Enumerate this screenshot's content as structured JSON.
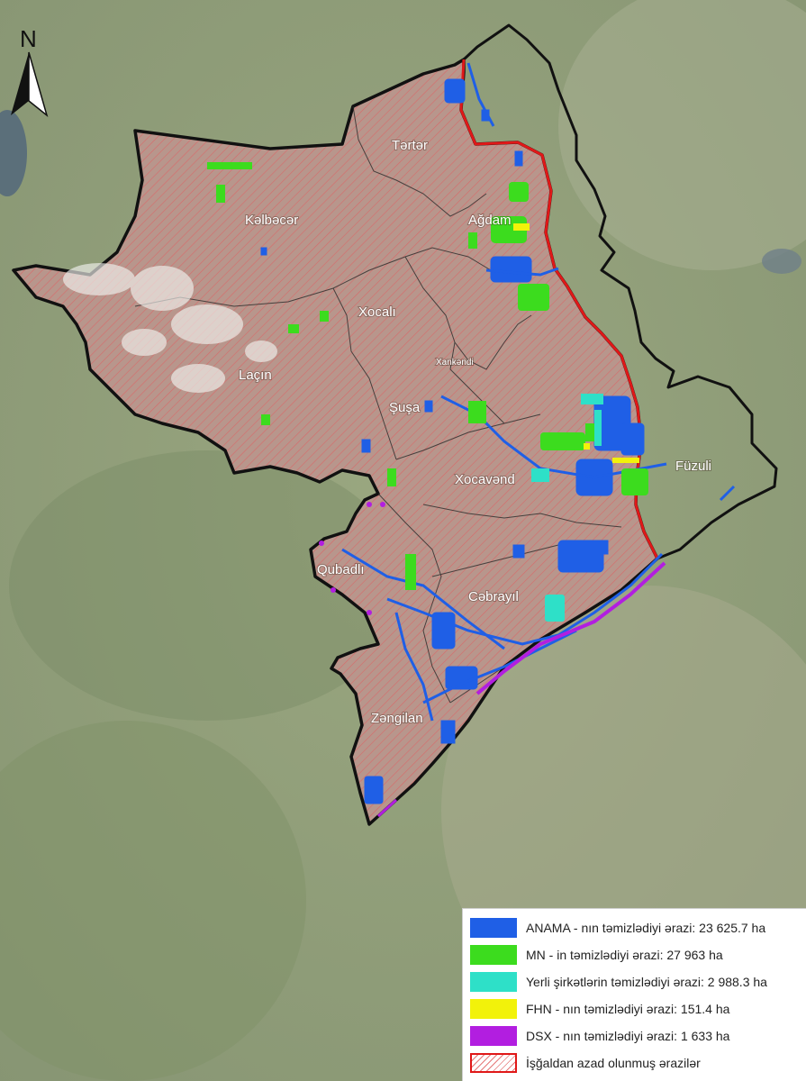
{
  "map": {
    "north_label": "N",
    "regions": {
      "tartar": "Tərtər",
      "kalbajar": "Kəlbəcər",
      "aghdam": "Ağdam",
      "khojaly": "Xocalı",
      "khankendi": "Xankəndi",
      "lachin": "Laçın",
      "shusha": "Şuşa",
      "khojavend": "Xocavənd",
      "fuzuli": "Füzuli",
      "gubadli": "Qubadlı",
      "jabrayil": "Cəbrayıl",
      "zangilan": "Zəngilan"
    },
    "colors": {
      "anama": "#1f5fe6",
      "mn": "#3cdc1e",
      "local": "#2ee0c8",
      "fhn": "#f2f20a",
      "dsx": "#b21ee0",
      "liberated_border": "#e01818",
      "boundary": "#000000",
      "hatch_fill": "#c9a49a"
    }
  },
  "legend": {
    "items": [
      {
        "key": "anama",
        "label": "ANAMA - nın təmizlədiyi ərazi: 23 625.7 ha",
        "color": "#1f5fe6"
      },
      {
        "key": "mn",
        "label": "MN - in təmizlədiyi ərazi: 27 963 ha",
        "color": "#3cdc1e"
      },
      {
        "key": "local",
        "label": "Yerli şirkətlərin təmizlədiyi ərazi: 2 988.3 ha",
        "color": "#2ee0c8"
      },
      {
        "key": "fhn",
        "label": "FHN - nın təmizlədiyi ərazi: 151.4 ha",
        "color": "#f2f20a"
      },
      {
        "key": "dsx",
        "label": "DSX - nın təmizlədiyi ərazi: 1 633 ha",
        "color": "#b21ee0"
      },
      {
        "key": "liberated",
        "label": "İşğaldan azad olunmuş ərazilər",
        "color": "#e01818"
      }
    ]
  }
}
